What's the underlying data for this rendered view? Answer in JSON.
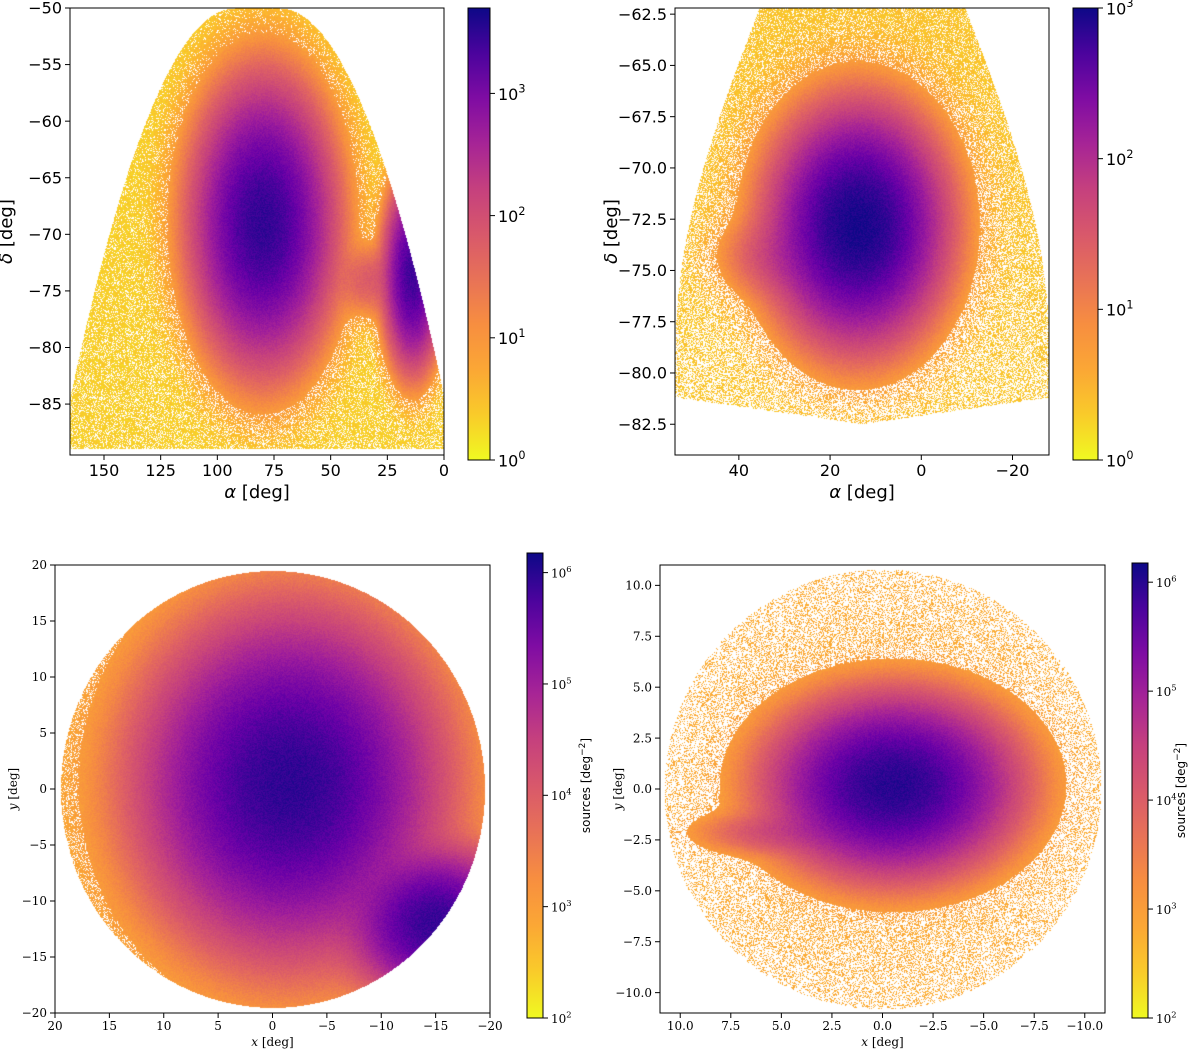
{
  "chart_data": [
    {
      "type": "heatmap",
      "panel": "top-left",
      "xlabel_symbol": "α",
      "xlabel_unit": " [deg]",
      "ylabel_symbol": "δ",
      "ylabel_unit": " [deg]",
      "xlim": [
        165,
        0
      ],
      "ylim": [
        -89.5,
        -50
      ],
      "xticks": [
        150,
        125,
        100,
        75,
        50,
        25,
        0
      ],
      "yticks": [
        -85,
        -80,
        -75,
        -70,
        -65,
        -60,
        -55,
        -50
      ],
      "ytick_labels": [
        "−85",
        "−80",
        "−75",
        "−70",
        "−65",
        "−60",
        "−55",
        "−50"
      ],
      "xtick_labels": [
        "150",
        "125",
        "100",
        "75",
        "50",
        "25",
        "0"
      ],
      "footprint": "cap",
      "colorbar": {
        "scale": "log",
        "range": [
          1,
          5000
        ],
        "ticks": [
          1,
          10,
          100,
          1000
        ],
        "tick_labels": [
          "10^0",
          "10^1",
          "10^2",
          "10^3"
        ],
        "label": ""
      },
      "features": [
        {
          "label": "",
          "x": 80,
          "y": -69,
          "peak": 3000,
          "sx": 12,
          "sy": 4.8
        },
        {
          "label": "",
          "x": 14,
          "y": -73.5,
          "peak": 2500,
          "sx": 5,
          "sy": 3.2
        },
        {
          "label": "",
          "x": 32,
          "y": -74,
          "peak": 60,
          "sx": 8,
          "sy": 1.5
        }
      ]
    },
    {
      "type": "heatmap",
      "panel": "top-right",
      "xlabel_symbol": "α",
      "xlabel_unit": " [deg]",
      "ylabel_symbol": "δ",
      "ylabel_unit": " [deg]",
      "xlim": [
        54,
        -28
      ],
      "ylim": [
        -84,
        -62.2
      ],
      "xticks": [
        40,
        20,
        0,
        -20
      ],
      "xtick_labels": [
        "40",
        "20",
        "0",
        "−20"
      ],
      "yticks": [
        -82.5,
        -80,
        -77.5,
        -75,
        -72.5,
        -70,
        -67.5,
        -65,
        -62.5
      ],
      "ytick_labels": [
        "−82.5",
        "−80.0",
        "−77.5",
        "−75.0",
        "−72.5",
        "−70.0",
        "−67.5",
        "−65.0",
        "−62.5"
      ],
      "footprint": "cap",
      "colorbar": {
        "scale": "log",
        "range": [
          1,
          1000
        ],
        "ticks": [
          1,
          10,
          100,
          1000
        ],
        "tick_labels": [
          "10^0",
          "10^1",
          "10^2",
          "10^3"
        ],
        "label": ""
      },
      "features": [
        {
          "label": "",
          "x": 14,
          "y": -72.8,
          "peak": 900,
          "sx": 8,
          "sy": 2.4
        },
        {
          "label": "",
          "x": 32,
          "y": -74.3,
          "peak": 30,
          "sx": 6,
          "sy": 1.0
        }
      ]
    },
    {
      "type": "heatmap",
      "panel": "bottom-left",
      "xlabel_symbol": "x",
      "xlabel_unit": " [deg]",
      "ylabel_symbol": "y",
      "ylabel_unit": " [deg]",
      "xlim": [
        20,
        -20
      ],
      "ylim": [
        -20,
        20
      ],
      "xticks": [
        20,
        15,
        10,
        5,
        0,
        -5,
        -10,
        -15,
        -20
      ],
      "xtick_labels": [
        "20",
        "15",
        "10",
        "5",
        "0",
        "−5",
        "−10",
        "−15",
        "−20"
      ],
      "yticks": [
        -20,
        -15,
        -10,
        -5,
        0,
        5,
        10,
        15,
        20
      ],
      "ytick_labels": [
        "−20",
        "−15",
        "−10",
        "−5",
        "0",
        "5",
        "10",
        "15",
        "20"
      ],
      "footprint": "circle",
      "footprint_radius": 19.5,
      "colorbar": {
        "scale": "log",
        "range": [
          100,
          1500000
        ],
        "ticks": [
          100,
          1000,
          10000,
          100000,
          1000000
        ],
        "tick_labels": [
          "10^2",
          "10^3",
          "10^4",
          "10^5",
          "10^6"
        ],
        "label_base": "sources [deg",
        "label_exp": "−2",
        "label_end": "]"
      },
      "features": [
        {
          "label": "",
          "x": -1.5,
          "y": 0.5,
          "peak": 900000,
          "sx": 5,
          "sy": 5.5
        },
        {
          "label": "",
          "x": -15,
          "y": -12,
          "peak": 800000,
          "sx": 3,
          "sy": 2.5
        },
        {
          "label": "",
          "x": -10,
          "y": -9,
          "peak": 8000,
          "sx": 3.5,
          "sy": 2
        }
      ]
    },
    {
      "type": "heatmap",
      "panel": "bottom-right",
      "xlabel_symbol": "x",
      "xlabel_unit": " [deg]",
      "ylabel_symbol": "y",
      "ylabel_unit": " [deg]",
      "xlim": [
        11,
        -11
      ],
      "ylim": [
        -11,
        11
      ],
      "xticks": [
        10,
        7.5,
        5,
        2.5,
        0,
        -2.5,
        -5,
        -7.5,
        -10
      ],
      "xtick_labels": [
        "10.0",
        "7.5",
        "5.0",
        "2.5",
        "0.0",
        "−2.5",
        "−5.0",
        "−7.5",
        "−10.0"
      ],
      "yticks": [
        -10,
        -7.5,
        -5,
        -2.5,
        0,
        2.5,
        5,
        7.5,
        10
      ],
      "ytick_labels": [
        "−10.0",
        "−7.5",
        "−5.0",
        "−2.5",
        "0.0",
        "2.5",
        "5.0",
        "7.5",
        "10.0"
      ],
      "footprint": "circle",
      "footprint_radius": 10.8,
      "colorbar": {
        "scale": "log",
        "range": [
          100,
          1500000
        ],
        "ticks": [
          100,
          1000,
          10000,
          100000,
          1000000
        ],
        "tick_labels": [
          "10^2",
          "10^3",
          "10^4",
          "10^5",
          "10^6"
        ],
        "label_base": "sources [deg",
        "label_exp": "−2",
        "label_end": "]"
      },
      "features": [
        {
          "label": "",
          "x": -0.5,
          "y": 0.2,
          "peak": 1000000,
          "sx": 2.2,
          "sy": 1.6
        },
        {
          "label": "",
          "x": 4.8,
          "y": -2.1,
          "peak": 20000,
          "sx": 1.8,
          "sy": 0.5
        }
      ]
    }
  ]
}
